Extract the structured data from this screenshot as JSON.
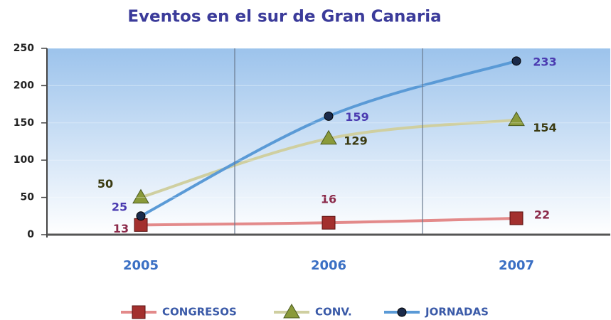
{
  "chart_data": {
    "type": "line",
    "title": "Eventos en el sur de Gran Canaria",
    "categories": [
      "2005",
      "2006",
      "2007"
    ],
    "series": [
      {
        "name": "CONGRESOS",
        "color": "#e38a8a",
        "marker_color": "#a3302e",
        "label_color": "#8b2a4a",
        "marker": "square",
        "values": [
          13,
          16,
          22
        ]
      },
      {
        "name": "CONV.",
        "color": "#cfcfa0",
        "marker_color": "#8a9a3a",
        "label_color": "#3a3a10",
        "marker": "triangle",
        "values": [
          50,
          129,
          154
        ]
      },
      {
        "name": "JORNADAS",
        "color": "#5a9ad6",
        "marker_color": "#1a2a4a",
        "label_color": "#4a3ab0",
        "marker": "circle",
        "values": [
          25,
          159,
          233
        ]
      }
    ],
    "ylim": [
      0,
      250
    ],
    "yticks": [
      0,
      50,
      100,
      150,
      200,
      250
    ],
    "grid": true,
    "legend": "bottom"
  }
}
